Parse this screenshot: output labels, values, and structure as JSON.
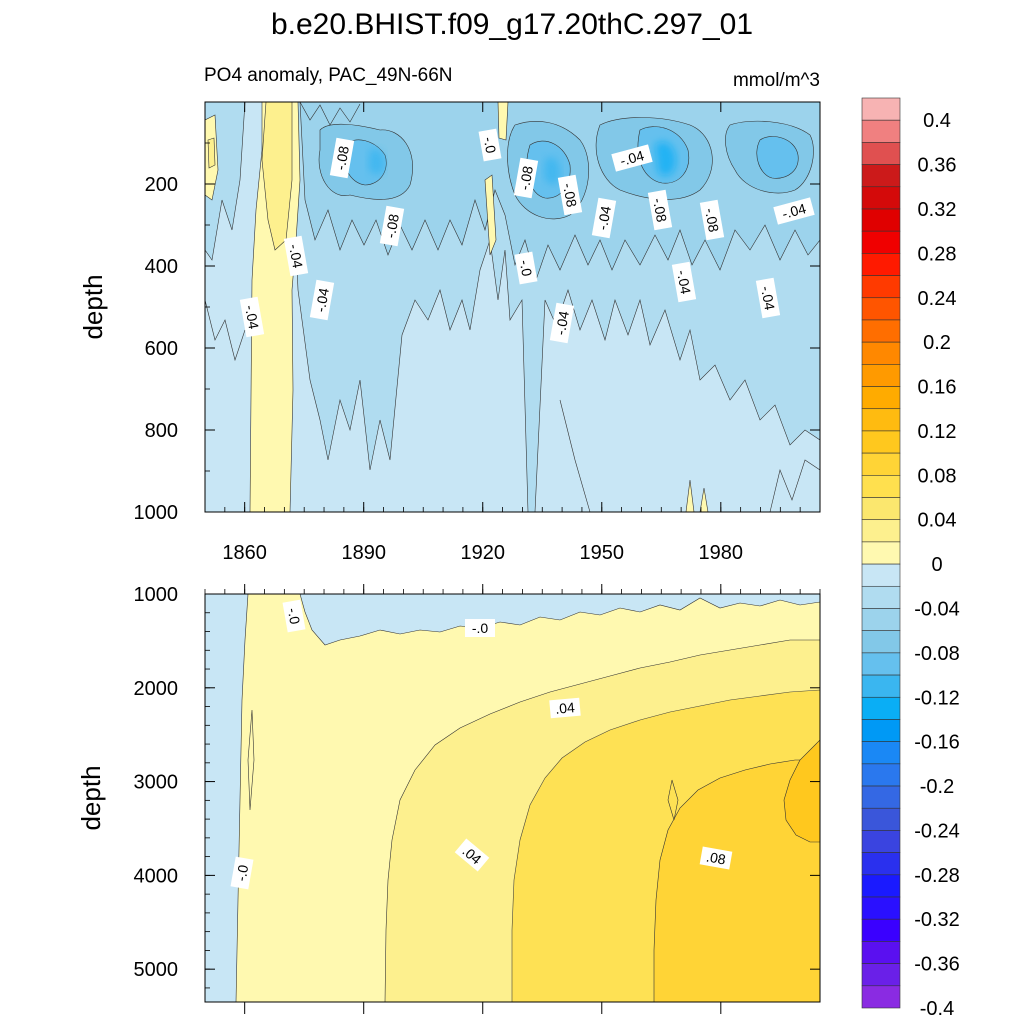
{
  "title": "b.e20.BHIST.f09_g17.20thC.297_01",
  "subtitle_left": "PO4 anomaly, PAC_49N-66N",
  "subtitle_right": "mmol/m^3",
  "chart_data": [
    {
      "type": "heatmap",
      "panel": "upper",
      "xlabel": "",
      "ylabel": "depth",
      "xlim": [
        1850,
        2005
      ],
      "ylim": [
        1000,
        0
      ],
      "x_ticks": [
        "1860",
        "1890",
        "1920",
        "1950",
        "1980"
      ],
      "y_ticks": [
        "200",
        "400",
        "600",
        "800",
        "1000"
      ],
      "contour_labels": [
        "-.08",
        "-.0",
        "-.08",
        "-.08",
        "-.04",
        "-.08",
        "-.08",
        "-.04",
        "-.04",
        "-.08",
        "-.04",
        "-.0",
        "-.04",
        "-.04",
        "-.04",
        "-.04",
        "-.04",
        "-.0",
        "-.04"
      ],
      "description_values": {
        "near_zero_band_years": [
          1862,
          1874
        ],
        "strongest_negative_depth_range": [
          100,
          300
        ],
        "strongest_negative_value": -0.12
      }
    },
    {
      "type": "heatmap",
      "panel": "lower",
      "xlabel": "",
      "ylabel": "depth",
      "xlim": [
        1850,
        2005
      ],
      "ylim": [
        5350,
        1000
      ],
      "x_ticks": [],
      "y_ticks": [
        "1000",
        "2000",
        "3000",
        "4000",
        "5000"
      ],
      "contour_labels": [
        "-.0",
        "-.0",
        ".04",
        ".04",
        ".08",
        "-.0"
      ],
      "description_values": {
        "max_positive_value": 0.1,
        "max_positive_depth": 3300,
        "max_positive_year": 2000
      }
    }
  ],
  "colorbar": {
    "labels": [
      "0.4",
      "0.36",
      "0.32",
      "0.28",
      "0.24",
      "0.2",
      "0.16",
      "0.12",
      "0.08",
      "0.04",
      "0",
      "-0.04",
      "-0.08",
      "-0.12",
      "-0.16",
      "-0.2",
      "-0.24",
      "-0.28",
      "-0.32",
      "-0.36",
      "-0.4"
    ],
    "colors": [
      "#f7b3b3",
      "#f08080",
      "#e05050",
      "#cc1a1a",
      "#d40a0a",
      "#e00000",
      "#f00000",
      "#ff1a00",
      "#ff3a00",
      "#ff5500",
      "#ff6e00",
      "#ff8800",
      "#ff9a00",
      "#ffab00",
      "#ffbb10",
      "#ffc81e",
      "#ffd436",
      "#ffe04e",
      "#fbe76e",
      "#fdf08e",
      "#fff9b0",
      "#c8e6f5",
      "#b0dcf0",
      "#9cd3ec",
      "#82c8e8",
      "#65c0ee",
      "#3ab6f0",
      "#0aaef5",
      "#0099f5",
      "#1a88f5",
      "#2a78ee",
      "#3468e4",
      "#3a56da",
      "#3a44e0",
      "#2a30ee",
      "#1a1aff",
      "#2a10ff",
      "#3a00ff",
      "#5a10f0",
      "#6a20e8",
      "#8a2be2"
    ]
  }
}
